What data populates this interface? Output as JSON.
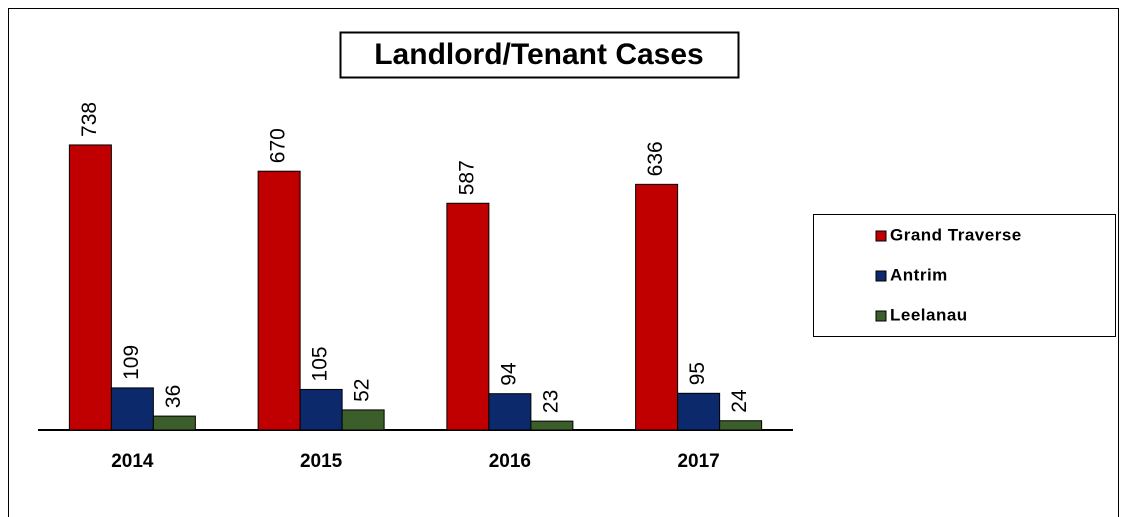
{
  "chart_data": {
    "type": "bar",
    "title": "Landlord/Tenant Cases",
    "categories": [
      "2014",
      "2015",
      "2016",
      "2017"
    ],
    "series": [
      {
        "name": "Grand Traverse",
        "color": "#c00000",
        "values": [
          738,
          670,
          587,
          636
        ]
      },
      {
        "name": "Antrim",
        "color": "#0c2a6b",
        "values": [
          109,
          105,
          94,
          95
        ]
      },
      {
        "name": "Leelanau",
        "color": "#3b5e2b",
        "values": [
          36,
          52,
          23,
          24
        ]
      }
    ],
    "ylim": [
      0,
      800
    ],
    "legend": "right"
  }
}
